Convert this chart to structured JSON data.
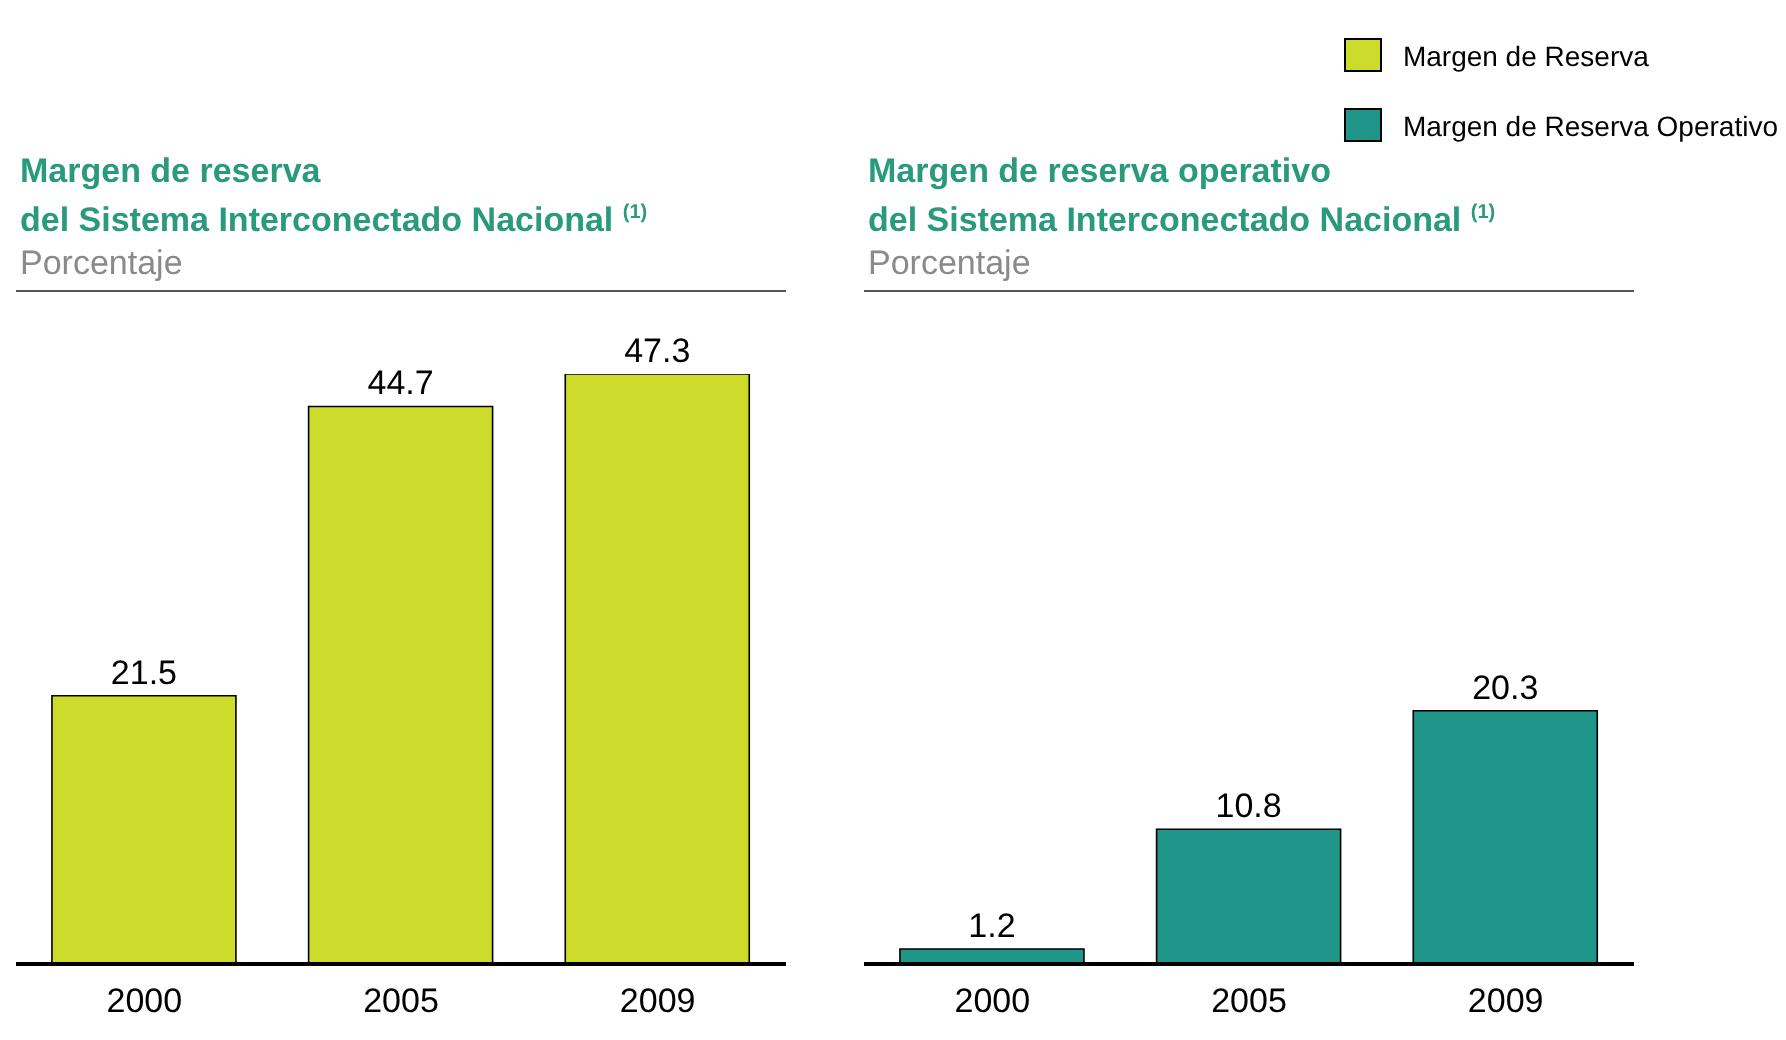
{
  "chart_data": [
    {
      "type": "bar",
      "title": "Margen de reserva\ndel Sistema Interconectado Nacional $^{(1)}$",
      "subtitle": "Porcentaje",
      "categories": [
        "2000",
        "2005",
        "2009"
      ],
      "series": [
        {
          "name": "Margen de Reserva",
          "color": "#cddc2a",
          "values": [
            21.5,
            44.7,
            47.3
          ]
        }
      ],
      "data_labels": true,
      "legend": "top right",
      "tick_labels": "x"
    },
    {
      "type": "bar",
      "title": "Margen de reserva operativo\ndel Sistema Interconectado Nacional $^{(1)}$",
      "subtitle": "Porcentaje",
      "categories": [
        "2000",
        "2005",
        "2009"
      ],
      "series": [
        {
          "name": "Margen de Reserva Operativo",
          "color": "#1f9688",
          "values": [
            1.2,
            10.8,
            20.3
          ]
        }
      ],
      "data_labels": true,
      "legend": "top right",
      "tick_labels": "x"
    }
  ]
}
